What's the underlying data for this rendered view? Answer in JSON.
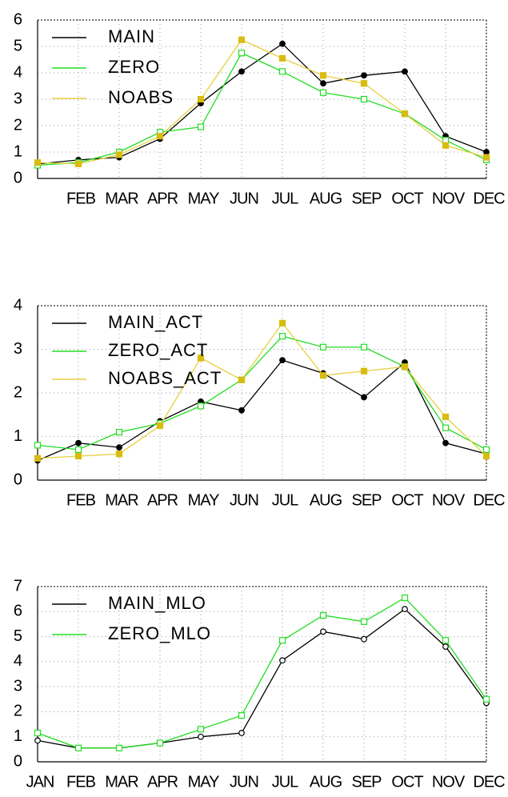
{
  "chart_data": [
    {
      "type": "line",
      "categories": [
        null,
        "FEB",
        "MAR",
        "APR",
        "MAY",
        "JUN",
        "JUL",
        "AUG",
        "SEP",
        "OCT",
        "NOV",
        "DEC"
      ],
      "ylim": [
        0,
        6
      ],
      "yticks": [
        0,
        1,
        2,
        3,
        4,
        5,
        6
      ],
      "grid": true,
      "legend": "upper-left",
      "series": [
        {
          "name": "MAIN",
          "color": "#000000",
          "marker": "filled-circle",
          "values": [
            0.55,
            0.7,
            0.8,
            1.5,
            2.85,
            4.05,
            5.1,
            3.6,
            3.9,
            4.05,
            1.6,
            1.0
          ]
        },
        {
          "name": "ZERO",
          "color": "#22dd22",
          "marker": "open-square",
          "values": [
            0.5,
            0.6,
            1.0,
            1.75,
            1.95,
            4.75,
            4.05,
            3.25,
            3.0,
            2.45,
            1.45,
            0.7
          ]
        },
        {
          "name": "NOABS",
          "color": "#e6d040",
          "marker": "filled-square",
          "values": [
            0.6,
            0.55,
            0.9,
            1.6,
            3.0,
            5.25,
            4.55,
            3.9,
            3.6,
            2.45,
            1.25,
            0.8
          ]
        }
      ]
    },
    {
      "type": "line",
      "categories": [
        null,
        "FEB",
        "MAR",
        "APR",
        "MAY",
        "JUN",
        "JUL",
        "AUG",
        "SEP",
        "OCT",
        "NOV",
        "DEC"
      ],
      "ylim": [
        0,
        4
      ],
      "yticks": [
        0,
        1,
        2,
        3,
        4
      ],
      "grid": true,
      "legend": "upper-left",
      "series": [
        {
          "name": "MAIN_ACT",
          "color": "#000000",
          "marker": "filled-circle",
          "values": [
            0.45,
            0.85,
            0.75,
            1.35,
            1.8,
            1.6,
            2.75,
            2.45,
            1.9,
            2.7,
            0.85,
            0.6
          ]
        },
        {
          "name": "ZERO_ACT",
          "color": "#22dd22",
          "marker": "open-square",
          "values": [
            0.8,
            0.7,
            1.1,
            1.3,
            1.7,
            2.3,
            3.3,
            3.05,
            3.05,
            2.6,
            1.2,
            0.7
          ]
        },
        {
          "name": "NOABS_ACT",
          "color": "#e6d040",
          "marker": "filled-square",
          "values": [
            0.5,
            0.55,
            0.6,
            1.25,
            2.8,
            2.3,
            3.6,
            2.4,
            2.5,
            2.6,
            1.45,
            0.55
          ]
        }
      ]
    },
    {
      "type": "line",
      "categories": [
        "JAN",
        "FEB",
        "MAR",
        "APR",
        "MAY",
        "JUN",
        "JUL",
        "AUG",
        "SEP",
        "OCT",
        "NOV",
        "DEC"
      ],
      "ylim": [
        0,
        7
      ],
      "yticks": [
        0,
        1,
        2,
        3,
        4,
        5,
        6,
        7
      ],
      "grid": true,
      "legend": "upper-left",
      "series": [
        {
          "name": "MAIN_MLO",
          "color": "#000000",
          "marker": "open-circle",
          "values": [
            0.85,
            0.55,
            0.55,
            0.75,
            1.0,
            1.15,
            4.05,
            5.2,
            4.9,
            6.1,
            4.6,
            2.35
          ]
        },
        {
          "name": "ZERO_MLO",
          "color": "#22dd22",
          "marker": "open-square",
          "values": [
            1.15,
            0.55,
            0.55,
            0.75,
            1.3,
            1.85,
            4.85,
            5.85,
            5.6,
            6.55,
            4.85,
            2.5
          ]
        }
      ]
    }
  ]
}
